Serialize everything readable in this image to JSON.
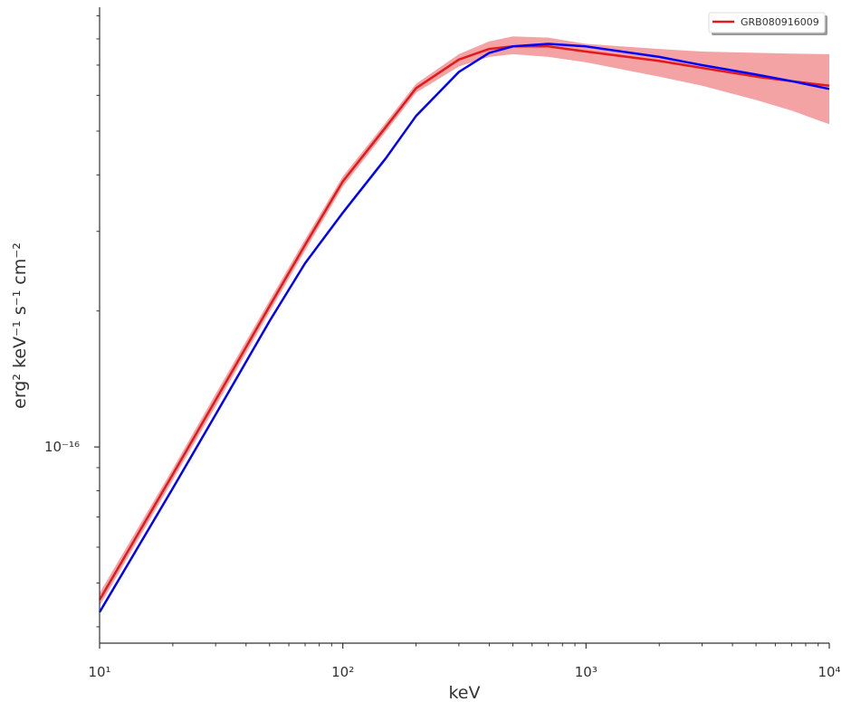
{
  "chart_data": {
    "type": "line",
    "xlabel": "keV",
    "ylabel": "erg² keV⁻¹ s⁻¹ cm⁻²",
    "xscale": "log",
    "yscale": "log",
    "x": [
      10,
      20,
      30,
      50,
      70,
      100,
      150,
      200,
      300,
      400,
      500,
      700,
      1000,
      2000,
      3000,
      5000,
      7000,
      10000
    ],
    "series": [
      {
        "name": "GRB080916009",
        "color": "#e31a1c",
        "band_color": "#f4a3a5",
        "values": [
          4.59e-17,
          8.7e-17,
          1.27e-16,
          2.05e-16,
          2.8e-16,
          3.87e-16,
          5.1e-16,
          6.22e-16,
          7.2e-16,
          7.6e-16,
          7.7e-16,
          7.7e-16,
          7.5e-16,
          7.15e-16,
          6.9e-16,
          6.6e-16,
          6.45e-16,
          6.3e-16
        ],
        "lower": [
          4.45e-17,
          8.45e-17,
          1.23e-16,
          1.99e-16,
          2.72e-16,
          3.77e-16,
          4.98e-16,
          6.08e-16,
          6.95e-16,
          7.3e-16,
          7.4e-16,
          7.3e-16,
          7.1e-16,
          6.6e-16,
          6.3e-16,
          5.86e-16,
          5.55e-16,
          5.18e-16
        ],
        "upper": [
          4.75e-17,
          8.95e-17,
          1.31e-16,
          2.11e-16,
          2.88e-16,
          3.97e-16,
          5.22e-16,
          6.36e-16,
          7.4e-16,
          7.9e-16,
          8.1e-16,
          8.05e-16,
          7.8e-16,
          7.6e-16,
          7.5e-16,
          7.45e-16,
          7.42e-16,
          7.4e-16
        ]
      },
      {
        "color": "#0000ff",
        "values": [
          4.31e-17,
          8.1e-17,
          1.18e-16,
          1.9e-16,
          2.55e-16,
          3.3e-16,
          4.35e-16,
          5.4e-16,
          6.76e-16,
          7.45e-16,
          7.7e-16,
          7.8e-16,
          7.7e-16,
          7.3e-16,
          7e-16,
          6.67e-16,
          6.45e-16,
          6.2e-16
        ]
      }
    ],
    "xlim": [
      10,
      10000
    ],
    "ylim": [
      3.68e-17,
      9.4e-16
    ],
    "xticks": [
      {
        "value": 10,
        "label": "10¹"
      },
      {
        "value": 100,
        "label": "10²"
      },
      {
        "value": 1000,
        "label": "10³"
      },
      {
        "value": 10000,
        "label": "10⁴"
      }
    ],
    "yticks": [
      {
        "value": 1e-16,
        "label": "10⁻¹⁶"
      }
    ],
    "xminorticks": [
      20,
      30,
      40,
      50,
      60,
      70,
      80,
      90,
      200,
      300,
      400,
      500,
      600,
      700,
      800,
      900,
      2000,
      3000,
      4000,
      5000,
      6000,
      7000,
      8000,
      9000
    ],
    "yminorticks": [
      4e-17,
      5e-17,
      6e-17,
      7e-17,
      8e-17,
      9e-17,
      2e-16,
      3e-16,
      4e-16,
      5e-16,
      6e-16,
      7e-16,
      8e-16,
      9e-16
    ],
    "legend": "upper right"
  }
}
